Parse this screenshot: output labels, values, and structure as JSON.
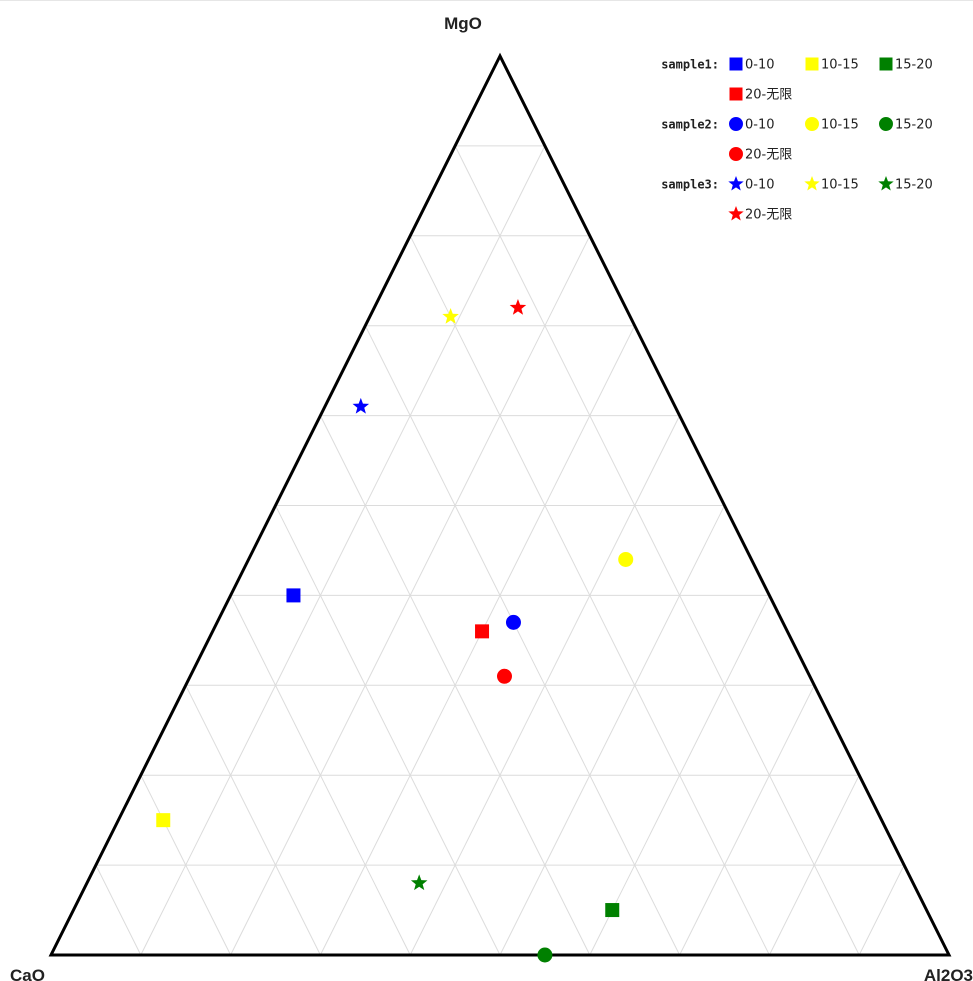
{
  "chart_data": {
    "type": "scatter",
    "subtype": "ternary",
    "axes": {
      "top": "MgO",
      "left": "CaO",
      "right": "Al2O3"
    },
    "grid": true,
    "grid_divisions": 10,
    "legend_position": "top-right",
    "category_colors": {
      "0-10": "#0000ff",
      "10-15": "#ffff00",
      "15-20": "#008000",
      "20-无限": "#ff0000"
    },
    "categories": [
      "0-10",
      "10-15",
      "15-20",
      "20-无限"
    ],
    "series": [
      {
        "name": "sample1",
        "marker": "square",
        "points": [
          {
            "category": "0-10",
            "MgO": 0.4,
            "CaO": 0.53,
            "Al2O3": 0.07
          },
          {
            "category": "10-15",
            "MgO": 0.15,
            "CaO": 0.8,
            "Al2O3": 0.05
          },
          {
            "category": "15-20",
            "MgO": 0.05,
            "CaO": 0.35,
            "Al2O3": 0.6
          },
          {
            "category": "20-无限",
            "MgO": 0.36,
            "CaO": 0.34,
            "Al2O3": 0.3
          }
        ]
      },
      {
        "name": "sample2",
        "marker": "circle",
        "points": [
          {
            "category": "0-10",
            "MgO": 0.37,
            "CaO": 0.3,
            "Al2O3": 0.33
          },
          {
            "category": "10-15",
            "MgO": 0.44,
            "CaO": 0.14,
            "Al2O3": 0.42
          },
          {
            "category": "15-20",
            "MgO": 0.0,
            "CaO": 0.45,
            "Al2O3": 0.55
          },
          {
            "category": "20-无限",
            "MgO": 0.31,
            "CaO": 0.34,
            "Al2O3": 0.35
          }
        ]
      },
      {
        "name": "sample3",
        "marker": "star",
        "points": [
          {
            "category": "0-10",
            "MgO": 0.61,
            "CaO": 0.35,
            "Al2O3": 0.04
          },
          {
            "category": "10-15",
            "MgO": 0.71,
            "CaO": 0.2,
            "Al2O3": 0.09
          },
          {
            "category": "15-20",
            "MgO": 0.08,
            "CaO": 0.55,
            "Al2O3": 0.37
          },
          {
            "category": "20-无限",
            "MgO": 0.72,
            "CaO": 0.12,
            "Al2O3": 0.16
          }
        ]
      }
    ]
  }
}
